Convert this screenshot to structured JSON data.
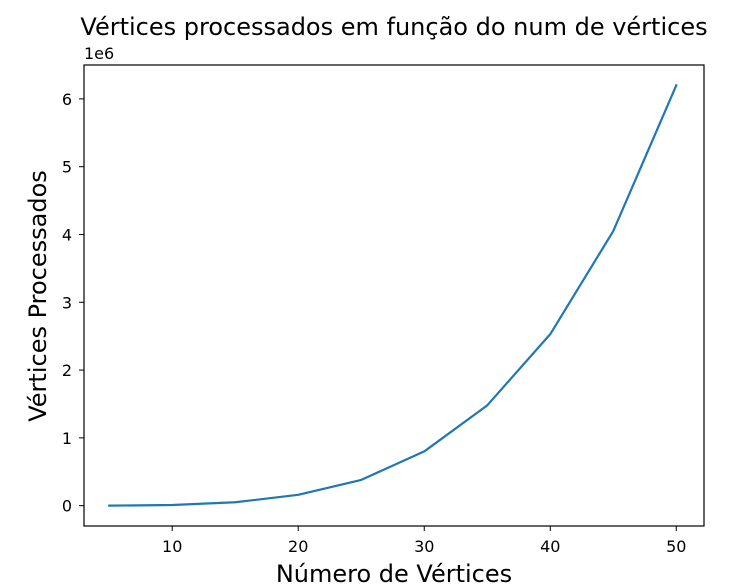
{
  "chart_data": {
    "type": "line",
    "title": "Vértices processados em função do num de vértices",
    "xlabel": "Número de Vértices",
    "ylabel": "Vértices Processados",
    "y_offset_label": "1e6",
    "xlim": [
      3,
      52.2
    ],
    "ylim": [
      -0.3,
      6.5
    ],
    "x_ticks": [
      10,
      20,
      30,
      40,
      50
    ],
    "y_ticks": [
      0,
      1,
      2,
      3,
      4,
      5,
      6
    ],
    "x_tick_labels": [
      "10",
      "20",
      "30",
      "40",
      "50"
    ],
    "y_tick_labels": [
      "0",
      "1",
      "2",
      "3",
      "4",
      "5",
      "6"
    ],
    "grid": false,
    "series": [
      {
        "color": "#1f77b4",
        "x": [
          5,
          10,
          15,
          20,
          25,
          30,
          35,
          40,
          45,
          50
        ],
        "y": [
          0.0,
          0.01,
          0.05,
          0.16,
          0.38,
          0.8,
          1.48,
          2.53,
          4.05,
          6.2
        ]
      }
    ]
  }
}
